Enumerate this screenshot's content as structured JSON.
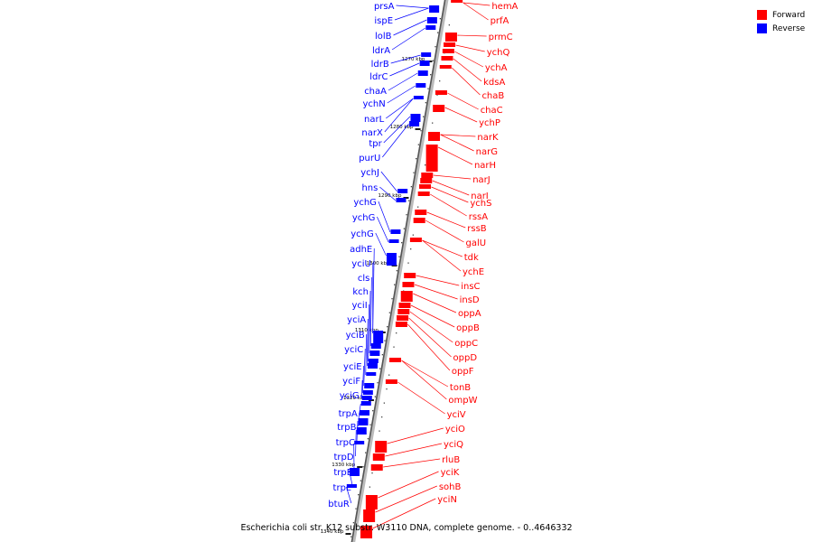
{
  "legend": {
    "forward": {
      "label": "Forward",
      "color": "#ff0000"
    },
    "reverse": {
      "label": "Reverse",
      "color": "#0000ff"
    }
  },
  "caption": "Escherichia coli str. K12 substr. W3110 DNA, complete genome. - 0..4646332",
  "ticks": [
    "1270 kbp",
    "1280 kbp",
    "1290 kbp",
    "1300 kbp",
    "1310 kbp",
    "1320 kbp",
    "1330 kbp",
    "1340 kbp"
  ],
  "reverse_genes": [
    "prsA",
    "ispE",
    "lolB",
    "ldrA",
    "ldrB",
    "ldrC",
    "chaA",
    "ychN",
    "narL",
    "narX",
    "tpr",
    "purU",
    "ychJ",
    "hns",
    "ychG",
    "ychG",
    "ychG",
    "adhE",
    "yciU",
    "cls",
    "kch",
    "yciI",
    "yciA",
    "yciB",
    "yciC",
    "yciE",
    "yciF",
    "yciG",
    "trpA",
    "trpB",
    "trpC",
    "trpD",
    "trpE",
    "trpL",
    "btuR"
  ],
  "forward_genes": [
    "hemA",
    "prfA",
    "prmC",
    "ychQ",
    "ychA",
    "kdsA",
    "chaB",
    "chaC",
    "ychP",
    "narK",
    "narG",
    "narH",
    "narJ",
    "narI",
    "ychS",
    "rssA",
    "rssB",
    "galU",
    "tdk",
    "ychE",
    "insC",
    "insD",
    "oppA",
    "oppB",
    "oppC",
    "oppD",
    "oppF",
    "tonB",
    "ompW",
    "yciV",
    "yciO",
    "yciQ",
    "rluB",
    "yciK",
    "sohB",
    "yciN"
  ]
}
